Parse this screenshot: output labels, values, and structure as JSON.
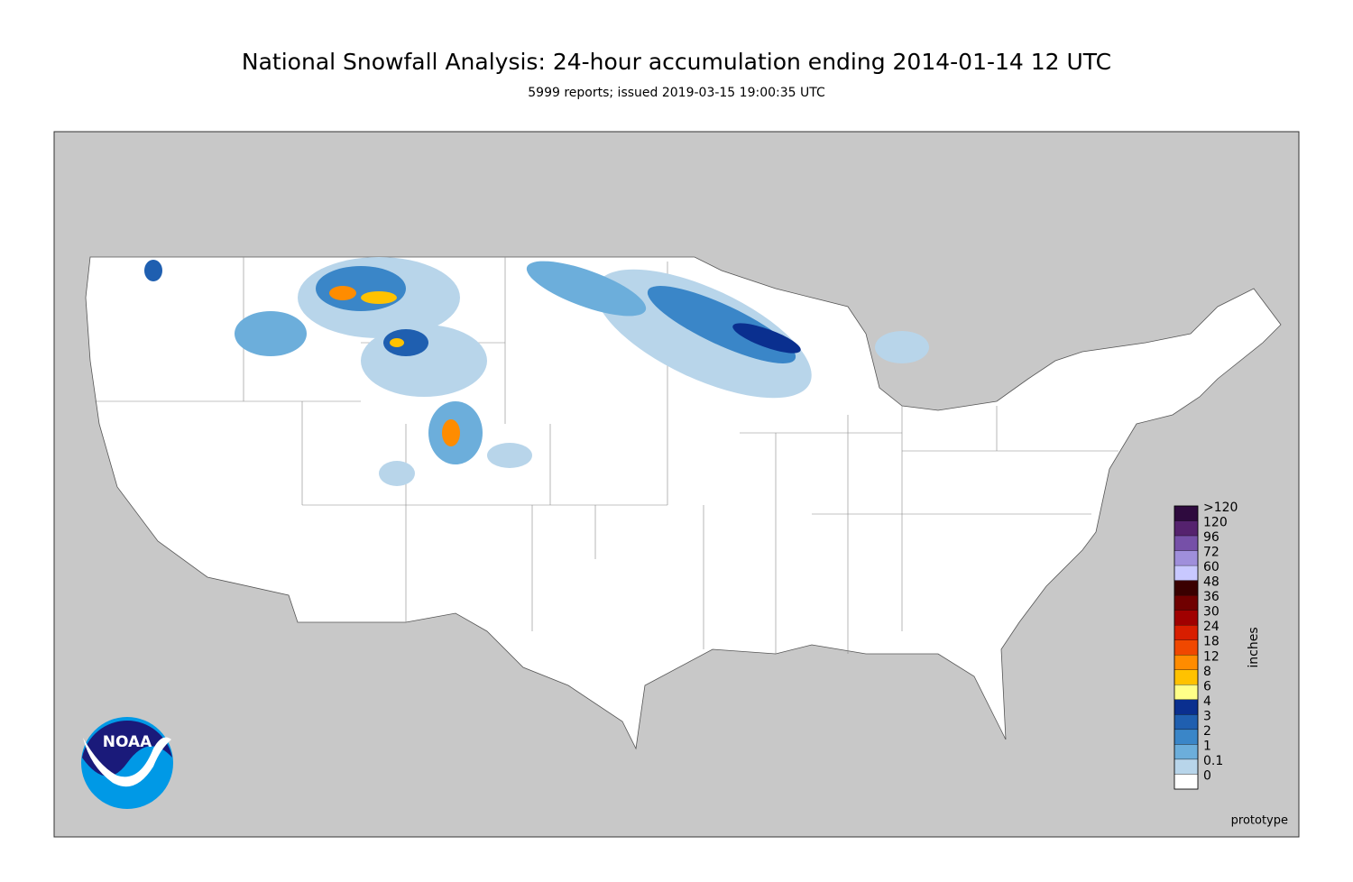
{
  "title": "National Snowfall Analysis: 24-hour accumulation ending 2014-01-14 12 UTC",
  "subtitle": "5999 reports; issued 2019-03-15 19:00:35 UTC",
  "legend": {
    "title": "inches",
    "items": [
      {
        "label": ">120",
        "color": "#2e0a3e"
      },
      {
        "label": "120",
        "color": "#55226e"
      },
      {
        "label": "96",
        "color": "#7650a8"
      },
      {
        "label": "72",
        "color": "#9f8fdb"
      },
      {
        "label": "60",
        "color": "#c8c8ff"
      },
      {
        "label": "48",
        "color": "#3a0000"
      },
      {
        "label": "36",
        "color": "#700000"
      },
      {
        "label": "30",
        "color": "#a00000"
      },
      {
        "label": "24",
        "color": "#d81e00"
      },
      {
        "label": "18",
        "color": "#f04800"
      },
      {
        "label": "12",
        "color": "#ff8c00"
      },
      {
        "label": "8",
        "color": "#ffc200"
      },
      {
        "label": "6",
        "color": "#ffff88"
      },
      {
        "label": "4",
        "color": "#0a2f8f"
      },
      {
        "label": "3",
        "color": "#1f5fb0"
      },
      {
        "label": "2",
        "color": "#3a86c8"
      },
      {
        "label": "1",
        "color": "#6caedb"
      },
      {
        "label": "0.1",
        "color": "#b8d5ea"
      },
      {
        "label": "0",
        "color": "#ffffff"
      }
    ]
  },
  "note": "prototype",
  "logo": "NOAA"
}
